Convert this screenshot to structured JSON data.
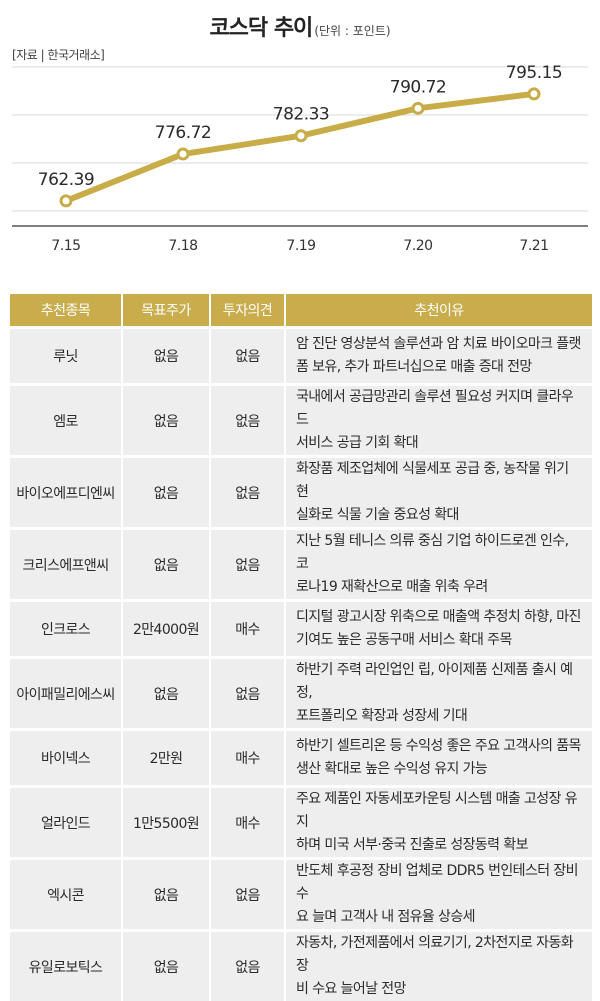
{
  "header": {
    "title": "코스닥 추이",
    "unit": "(단위 : 포인트)",
    "source": "[자료 | 한국거래소]"
  },
  "colors": {
    "accent": "#c9ad4c",
    "line": "#c8ac47",
    "row_bg": "#eeeeee",
    "grid": "#d9d9d9"
  },
  "chart_data": {
    "type": "line",
    "title": "코스닥 추이",
    "categories": [
      "7.15",
      "7.18",
      "7.19",
      "7.20",
      "7.21"
    ],
    "series": [
      {
        "values": [
          762.39,
          776.72,
          782.33,
          790.72,
          795.15
        ]
      }
    ],
    "value_labels": [
      "762.39",
      "776.72",
      "782.33",
      "790.72",
      "795.15"
    ],
    "ylim": [
      755,
      800
    ],
    "grid": true,
    "legend": "none"
  },
  "table": {
    "headers": [
      "추천종목",
      "목표주가",
      "투자의견",
      "추천이유"
    ],
    "rows": [
      {
        "name": "루닛",
        "target": "없음",
        "opinion": "없음",
        "reason": [
          "암 진단 영상분석 솔루션과 암 치료 바이오마크 플랫",
          "폼 보유, 추가 파트너십으로 매출 증대 전망"
        ]
      },
      {
        "name": "엠로",
        "target": "없음",
        "opinion": "없음",
        "reason": [
          "국내에서 공급망관리 솔루션 필요성 커지며 클라우드",
          "서비스 공급 기회 확대"
        ]
      },
      {
        "name": "바이오에프디엔씨",
        "target": "없음",
        "opinion": "없음",
        "reason": [
          "화장품 제조업체에 식물세포 공급 중, 농작물 위기 현",
          "실화로 식물 기술 중요성 확대"
        ]
      },
      {
        "name": "크리스에프앤씨",
        "target": "없음",
        "opinion": "없음",
        "reason": [
          "지난 5월 테니스 의류 중심 기업 하이드로겐 인수, 코",
          "로나19 재확산으로 매출 위축 우려"
        ]
      },
      {
        "name": "인크로스",
        "target": "2만4000원",
        "opinion": "매수",
        "reason": [
          "디지털 광고시장 위축으로 매출액 추정치 하향, 마진",
          "기여도 높은 공동구매 서비스 확대 주목"
        ]
      },
      {
        "name": "아이패밀리에스씨",
        "target": "없음",
        "opinion": "없음",
        "reason": [
          "하반기 주력 라인업인 립, 아이제품 신제품 출시 예정,",
          "포트폴리오 확장과 성장세 기대"
        ]
      },
      {
        "name": "바이넥스",
        "target": "2만원",
        "opinion": "매수",
        "reason": [
          "하반기 셀트리온 등 수익성 좋은 주요 고객사의 품목",
          "생산 확대로 높은 수익성 유지 가능"
        ]
      },
      {
        "name": "얼라인드",
        "target": "1만5500원",
        "opinion": "매수",
        "reason": [
          "주요 제품인 자동세포카운팅 시스템 매출 고성장 유지",
          "하며 미국 서부·중국 진출로 성장동력 확보"
        ]
      },
      {
        "name": "엑시콘",
        "target": "없음",
        "opinion": "없음",
        "reason": [
          "반도체 후공정 장비 업체로 DDR5 번인테스터 장비 수",
          "요 늘며 고객사 내 점유율 상승세"
        ]
      },
      {
        "name": "유일로보틱스",
        "target": "없음",
        "opinion": "없음",
        "reason": [
          "자동차, 가전제품에서 의료기기, 2차전지로 자동화 장",
          "비 수요 늘어날 전망"
        ]
      }
    ]
  }
}
